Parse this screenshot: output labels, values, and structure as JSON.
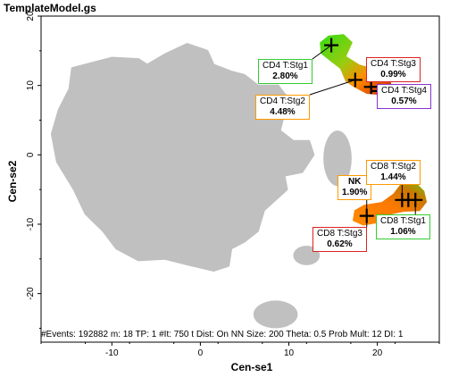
{
  "app_title": "TemplateModel.gs",
  "footer_text": "#Events: 192882 m: 18 TP: 1 #It: 750 t Dist: On NN Size: 200 Theta: 0.5 Prob Mult: 12 DI: 1",
  "chart_data": {
    "type": "scatter",
    "title": "",
    "xlabel": "Cen-se1",
    "ylabel": "Cen-se2",
    "xlim": [
      -18,
      27
    ],
    "ylim": [
      -27,
      20
    ],
    "xticks": [
      -10,
      0,
      10,
      20
    ],
    "yticks": [
      -20,
      -10,
      0,
      10,
      20
    ],
    "grid": false,
    "colors": {
      "background_cells": "#c0c0c0",
      "high": "#33dd11",
      "mid": "#ff8c00",
      "low": "#cc2200"
    },
    "annotations": [
      {
        "id": "cd4-stg1",
        "name": "CD4 T:Stg1",
        "pct": "2.80%",
        "x": 14.8,
        "y": 15.8,
        "border": "#33cc33"
      },
      {
        "id": "cd4-stg2",
        "name": "CD4 T:Stg2",
        "pct": "4.48%",
        "x": 17.5,
        "y": 10.8,
        "border": "#ff9900"
      },
      {
        "id": "cd4-stg3",
        "name": "CD4 T:Stg3",
        "pct": "0.99%",
        "x": 19.3,
        "y": 9.8,
        "border": "#dd2222"
      },
      {
        "id": "cd4-stg4",
        "name": "CD4 T:Stg4",
        "pct": "0.57%",
        "x": 20.2,
        "y": 9.2,
        "border": "#8833cc"
      },
      {
        "id": "nk",
        "name": "NK",
        "pct": "1.90%",
        "x": 18.8,
        "y": -8.8,
        "border": "#ff9900"
      },
      {
        "id": "cd8-stg3",
        "name": "CD8 T:Stg3",
        "pct": "0.62%",
        "x": 18.8,
        "y": -8.8,
        "border": "#dd2222"
      },
      {
        "id": "cd8-stg2",
        "name": "CD8 T:Stg2",
        "pct": "1.44%",
        "x": 22.8,
        "y": -6.5,
        "border": "#ff9900"
      },
      {
        "id": "cd8-stg1",
        "name": "CD8 T:Stg1",
        "pct": "1.06%",
        "x": 24.3,
        "y": -6.5,
        "border": "#33cc33"
      }
    ],
    "extra_markers": [
      {
        "x": 23.5,
        "y": -6.5
      }
    ],
    "regions": [
      {
        "name": "main-gray-cluster",
        "type": "gray",
        "cx": -1.5,
        "cy": 0.5,
        "rx": 14,
        "ry": 16
      },
      {
        "name": "cd4-gradient-cluster",
        "type": "gradient",
        "from": [
          15,
          16
        ],
        "to": [
          21,
          9
        ]
      },
      {
        "name": "cd8-gradient-cluster",
        "type": "gradient",
        "from": [
          18,
          -8.5
        ],
        "to": [
          25,
          -6
        ]
      },
      {
        "name": "small-gray-1",
        "type": "gray",
        "cx": 15.5,
        "cy": -0.5,
        "rx": 1.6,
        "ry": 4
      },
      {
        "name": "small-gray-2",
        "type": "gray",
        "cx": 12,
        "cy": -14.5,
        "rx": 1.5,
        "ry": 1.4
      },
      {
        "name": "small-gray-3",
        "type": "gray",
        "cx": 8.5,
        "cy": -23,
        "rx": 2.5,
        "ry": 2
      }
    ]
  }
}
